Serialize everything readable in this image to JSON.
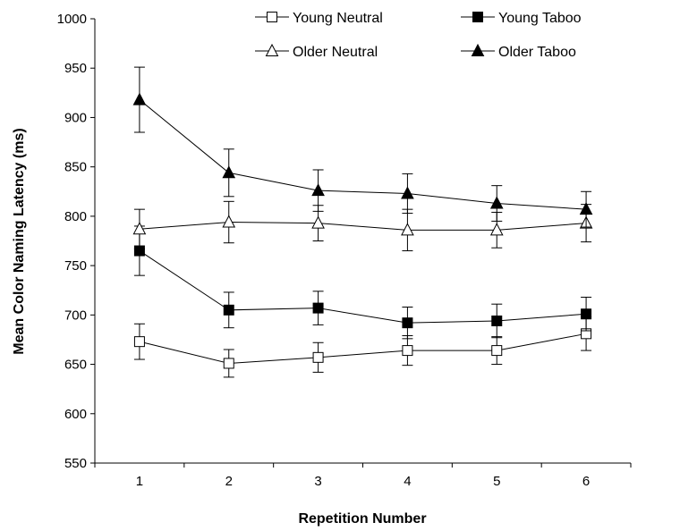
{
  "chart_data": {
    "type": "line",
    "title": "",
    "xlabel": "Repetition Number",
    "ylabel": "Mean Color Naming Latency (ms)",
    "x": [
      1,
      2,
      3,
      4,
      5,
      6
    ],
    "x_tick_labels": [
      "1",
      "2",
      "3",
      "4",
      "5",
      "6"
    ],
    "ylim": [
      550,
      1000
    ],
    "y_ticks": [
      550,
      600,
      650,
      700,
      750,
      800,
      850,
      900,
      950,
      1000
    ],
    "y_tick_labels": [
      "550",
      "600",
      "650",
      "700",
      "750",
      "800",
      "850",
      "900",
      "950",
      "1000"
    ],
    "grid": false,
    "legend_position": "top",
    "series": [
      {
        "name": "Young Neutral",
        "marker": "square-open",
        "values": [
          673,
          651,
          657,
          664,
          664,
          681
        ],
        "error": [
          18,
          14,
          15,
          15,
          14,
          17
        ]
      },
      {
        "name": "Young Taboo",
        "marker": "square-filled",
        "values": [
          765,
          705,
          707,
          692,
          694,
          701
        ],
        "error": [
          25,
          18,
          17,
          16,
          17,
          17
        ]
      },
      {
        "name": "Older Neutral",
        "marker": "triangle-open",
        "values": [
          787,
          794,
          793,
          786,
          786,
          793
        ],
        "error": [
          20,
          21,
          18,
          21,
          18,
          19
        ]
      },
      {
        "name": "Older Taboo",
        "marker": "triangle-filled",
        "values": [
          918,
          844,
          826,
          823,
          813,
          807
        ],
        "error": [
          33,
          24,
          21,
          20,
          18,
          18
        ]
      }
    ]
  }
}
